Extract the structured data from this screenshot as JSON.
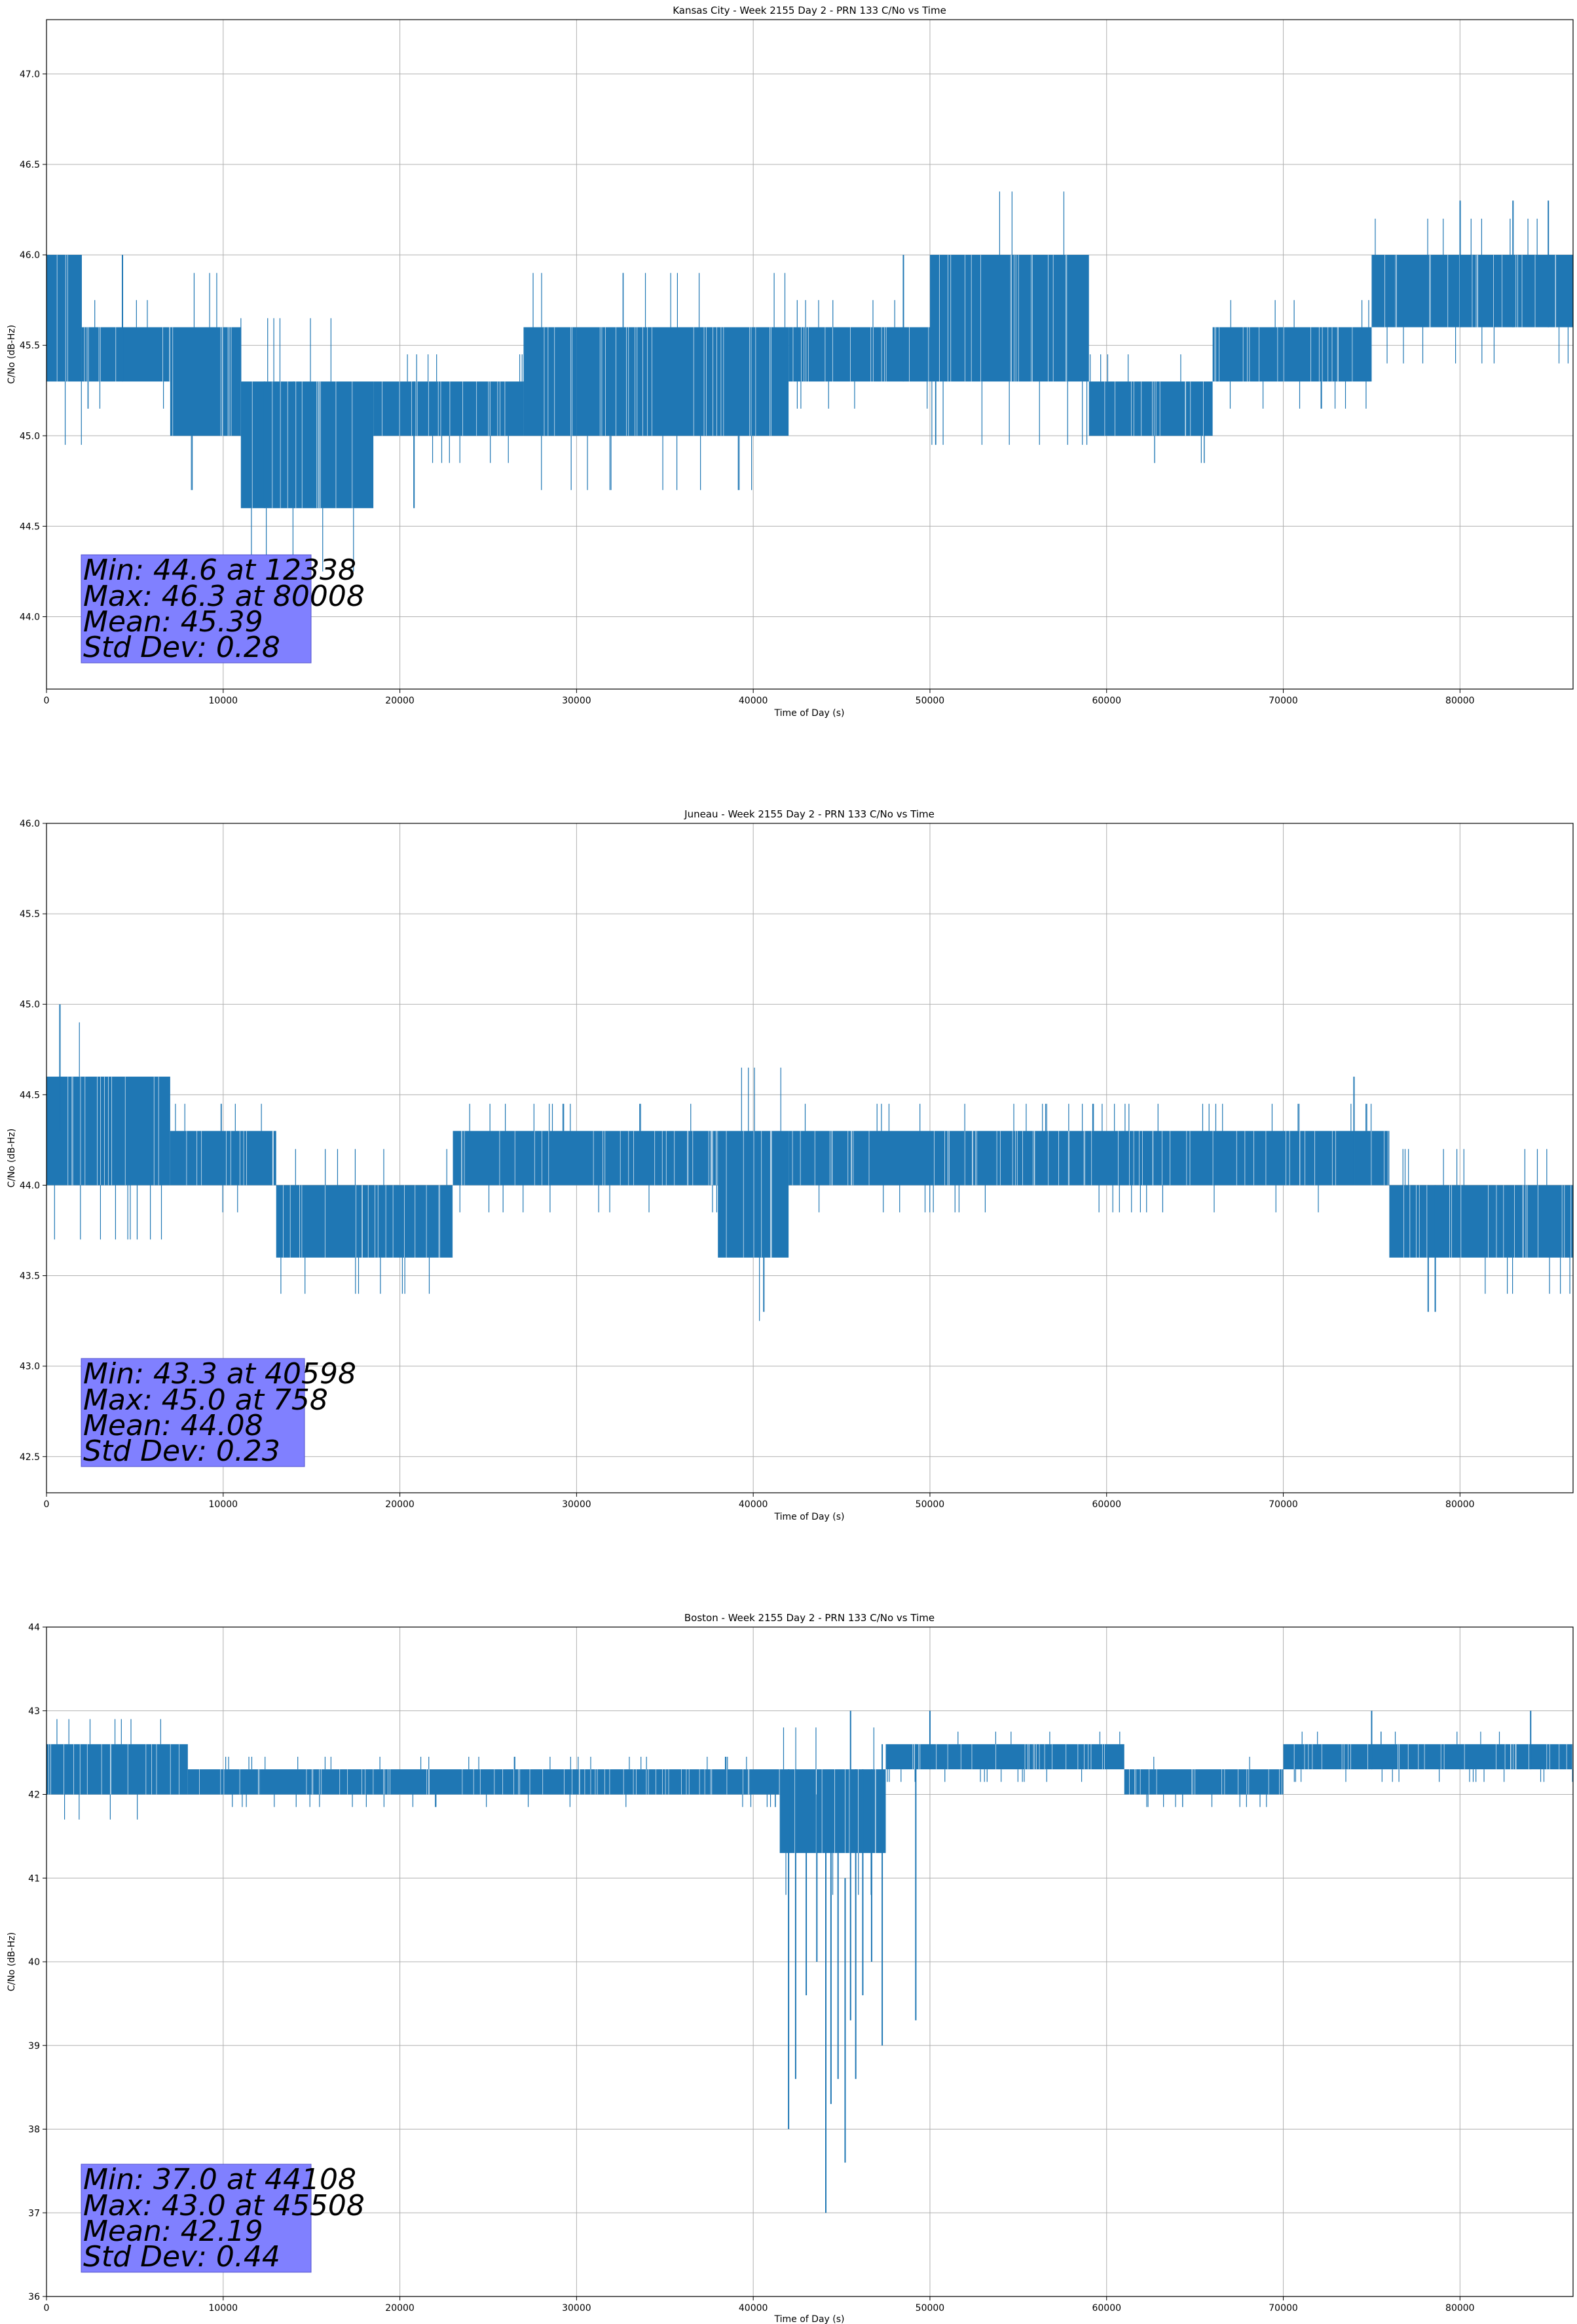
{
  "chart_data": [
    {
      "type": "line",
      "title": "Kansas City - Week 2155 Day 2 - PRN 133 C/No vs Time",
      "xlabel": "Time of Day (s)",
      "ylabel": "C/No (dB-Hz)",
      "xlim": [
        0,
        86400
      ],
      "ylim": [
        43.6,
        47.3
      ],
      "xticks": [
        0,
        10000,
        20000,
        30000,
        40000,
        50000,
        60000,
        70000,
        80000
      ],
      "yticks": [
        44.0,
        44.5,
        45.0,
        45.5,
        46.0,
        46.5,
        47.0
      ],
      "ytick_labels": [
        "44.0",
        "44.5",
        "45.0",
        "45.5",
        "46.0",
        "46.5",
        "47.0"
      ],
      "grid": true,
      "color": "#1f77b4",
      "bands": [
        {
          "x": [
            0,
            2000
          ],
          "y": [
            45.3,
            46.0
          ]
        },
        {
          "x": [
            2000,
            7000
          ],
          "y": [
            45.3,
            45.6
          ]
        },
        {
          "x": [
            7000,
            11000
          ],
          "y": [
            45.0,
            45.6
          ]
        },
        {
          "x": [
            11000,
            18500
          ],
          "y": [
            44.6,
            45.3
          ]
        },
        {
          "x": [
            18500,
            27000
          ],
          "y": [
            45.0,
            45.3
          ]
        },
        {
          "x": [
            27000,
            30000
          ],
          "y": [
            45.0,
            45.6
          ]
        },
        {
          "x": [
            30000,
            42000
          ],
          "y": [
            45.0,
            45.6
          ]
        },
        {
          "x": [
            42000,
            50000
          ],
          "y": [
            45.3,
            45.6
          ]
        },
        {
          "x": [
            50000,
            59000
          ],
          "y": [
            45.3,
            46.0
          ]
        },
        {
          "x": [
            59000,
            66000
          ],
          "y": [
            45.0,
            45.3
          ]
        },
        {
          "x": [
            66000,
            75000
          ],
          "y": [
            45.3,
            45.6
          ]
        },
        {
          "x": [
            75000,
            80000
          ],
          "y": [
            45.6,
            46.0
          ]
        },
        {
          "x": [
            80000,
            86400
          ],
          "y": [
            45.6,
            46.0
          ]
        }
      ],
      "spikes": [
        {
          "x": 4300,
          "y0": 45.3,
          "y1": 46.0
        },
        {
          "x": 12338,
          "y0": 44.6,
          "y1": 45.3
        },
        {
          "x": 14000,
          "y0": 44.6,
          "y1": 45.3
        },
        {
          "x": 20800,
          "y0": 44.6,
          "y1": 45.3
        },
        {
          "x": 48500,
          "y0": 45.3,
          "y1": 46.0
        },
        {
          "x": 80008,
          "y0": 45.6,
          "y1": 46.3
        },
        {
          "x": 83000,
          "y0": 45.6,
          "y1": 46.3
        },
        {
          "x": 85000,
          "y0": 45.6,
          "y1": 46.3
        }
      ],
      "stats": [
        "Min: 44.6 at 12338",
        "Max: 46.3 at 80008",
        "Mean: 45.39",
        "Std Dev: 0.28"
      ]
    },
    {
      "type": "line",
      "title": "Juneau - Week 2155 Day 2 - PRN 133 C/No vs Time",
      "xlabel": "Time of Day (s)",
      "ylabel": "C/No (dB-Hz)",
      "xlim": [
        0,
        86400
      ],
      "ylim": [
        42.3,
        46.0
      ],
      "xticks": [
        0,
        10000,
        20000,
        30000,
        40000,
        50000,
        60000,
        70000,
        80000
      ],
      "yticks": [
        42.5,
        43.0,
        43.5,
        44.0,
        44.5,
        45.0,
        45.5,
        46.0
      ],
      "ytick_labels": [
        "42.5",
        "43.0",
        "43.5",
        "44.0",
        "44.5",
        "45.0",
        "45.5",
        "46.0"
      ],
      "grid": true,
      "color": "#1f77b4",
      "bands": [
        {
          "x": [
            0,
            7000
          ],
          "y": [
            44.0,
            44.6
          ]
        },
        {
          "x": [
            7000,
            13000
          ],
          "y": [
            44.0,
            44.3
          ]
        },
        {
          "x": [
            13000,
            23000
          ],
          "y": [
            43.6,
            44.0
          ]
        },
        {
          "x": [
            23000,
            38000
          ],
          "y": [
            44.0,
            44.3
          ]
        },
        {
          "x": [
            38000,
            42000
          ],
          "y": [
            43.6,
            44.3
          ]
        },
        {
          "x": [
            42000,
            76000
          ],
          "y": [
            44.0,
            44.3
          ]
        },
        {
          "x": [
            76000,
            86400
          ],
          "y": [
            43.6,
            44.0
          ]
        }
      ],
      "spikes": [
        {
          "x": 758,
          "y0": 44.3,
          "y1": 45.0
        },
        {
          "x": 40598,
          "y0": 43.3,
          "y1": 44.0
        },
        {
          "x": 78200,
          "y0": 43.3,
          "y1": 44.0
        },
        {
          "x": 78600,
          "y0": 43.3,
          "y1": 44.0
        },
        {
          "x": 74000,
          "y0": 44.0,
          "y1": 44.6
        }
      ],
      "stats": [
        "Min: 43.3 at 40598",
        "Max: 45.0 at 758",
        "Mean: 44.08",
        "Std Dev: 0.23"
      ]
    },
    {
      "type": "line",
      "title": "Boston - Week 2155 Day 2 - PRN 133 C/No vs Time",
      "xlabel": "Time of Day (s)",
      "ylabel": "C/No (dB-Hz)",
      "xlim": [
        0,
        86400
      ],
      "ylim": [
        36,
        44
      ],
      "xticks": [
        0,
        10000,
        20000,
        30000,
        40000,
        50000,
        60000,
        70000,
        80000
      ],
      "yticks": [
        36,
        37,
        38,
        39,
        40,
        41,
        42,
        43,
        44
      ],
      "ytick_labels": [
        "36",
        "37",
        "38",
        "39",
        "40",
        "41",
        "42",
        "43",
        "44"
      ],
      "grid": true,
      "color": "#1f77b4",
      "bands": [
        {
          "x": [
            0,
            8000
          ],
          "y": [
            42.0,
            42.6
          ]
        },
        {
          "x": [
            8000,
            41500
          ],
          "y": [
            42.0,
            42.3
          ]
        },
        {
          "x": [
            41500,
            47500
          ],
          "y": [
            41.3,
            42.3
          ]
        },
        {
          "x": [
            47500,
            61000
          ],
          "y": [
            42.3,
            42.6
          ]
        },
        {
          "x": [
            61000,
            70000
          ],
          "y": [
            42.0,
            42.3
          ]
        },
        {
          "x": [
            70000,
            86400
          ],
          "y": [
            42.3,
            42.6
          ]
        }
      ],
      "spikes": [
        {
          "x": 42000,
          "y0": 38.0,
          "y1": 42.3
        },
        {
          "x": 42400,
          "y0": 38.6,
          "y1": 42.3
        },
        {
          "x": 43000,
          "y0": 39.6,
          "y1": 42.0
        },
        {
          "x": 43600,
          "y0": 40.0,
          "y1": 42.0
        },
        {
          "x": 44108,
          "y0": 37.0,
          "y1": 41.6
        },
        {
          "x": 44400,
          "y0": 38.3,
          "y1": 41.6
        },
        {
          "x": 44800,
          "y0": 38.6,
          "y1": 41.3
        },
        {
          "x": 45200,
          "y0": 37.6,
          "y1": 41.0
        },
        {
          "x": 45508,
          "y0": 39.3,
          "y1": 43.0
        },
        {
          "x": 45800,
          "y0": 38.6,
          "y1": 42.3
        },
        {
          "x": 46200,
          "y0": 39.6,
          "y1": 42.3
        },
        {
          "x": 46700,
          "y0": 40.0,
          "y1": 42.3
        },
        {
          "x": 47300,
          "y0": 39.0,
          "y1": 42.6
        },
        {
          "x": 49200,
          "y0": 39.3,
          "y1": 42.6
        },
        {
          "x": 50000,
          "y0": 42.3,
          "y1": 43.0
        },
        {
          "x": 75000,
          "y0": 42.3,
          "y1": 43.0
        },
        {
          "x": 84000,
          "y0": 42.3,
          "y1": 43.0
        }
      ],
      "stats": [
        "Min: 37.0 at 44108",
        "Max: 43.0 at 45508",
        "Mean: 42.19",
        "Std Dev: 0.44"
      ]
    }
  ]
}
